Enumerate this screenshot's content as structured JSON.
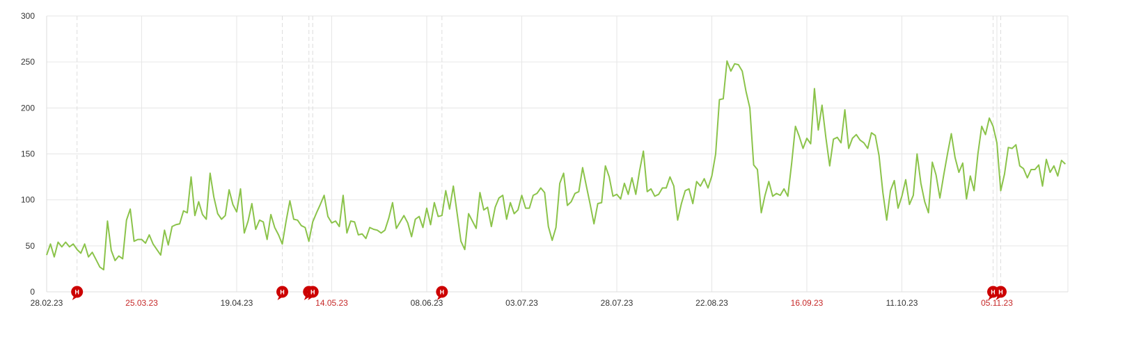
{
  "chart_data": {
    "type": "line",
    "title": "",
    "xlabel": "",
    "ylabel": "",
    "start_date": "2023-02-28",
    "x_tick_labels": [
      {
        "label": "28.02.23",
        "day": 0,
        "highlight": false
      },
      {
        "label": "25.03.23",
        "day": 25,
        "highlight": true
      },
      {
        "label": "19.04.23",
        "day": 50,
        "highlight": false
      },
      {
        "label": "14.05.23",
        "day": 75,
        "highlight": true
      },
      {
        "label": "08.06.23",
        "day": 100,
        "highlight": false
      },
      {
        "label": "03.07.23",
        "day": 125,
        "highlight": false
      },
      {
        "label": "28.07.23",
        "day": 150,
        "highlight": false
      },
      {
        "label": "22.08.23",
        "day": 175,
        "highlight": false
      },
      {
        "label": "16.09.23",
        "day": 200,
        "highlight": true
      },
      {
        "label": "11.10.23",
        "day": 225,
        "highlight": false
      },
      {
        "label": "05.11.23",
        "day": 250,
        "highlight": true
      }
    ],
    "y_ticks": [
      "0",
      "50",
      "100",
      "150",
      "200",
      "250",
      "300"
    ],
    "ylim": [
      0,
      300
    ],
    "grid": true,
    "legend": "none",
    "colors": {
      "line": "#8bc34a",
      "grid": "#e6e6e6",
      "highlight_label": "#c62828",
      "annotation": "#cc0000"
    },
    "series": [
      {
        "values": [
          40,
          52,
          38,
          54,
          49,
          54,
          49,
          52,
          46,
          42,
          52,
          38,
          43,
          35,
          27,
          24,
          77,
          45,
          34,
          39,
          36,
          78,
          90,
          55,
          57,
          57,
          53,
          62,
          52,
          46,
          40,
          67,
          51,
          71,
          73,
          74,
          88,
          86,
          125,
          83,
          98,
          84,
          79,
          129,
          103,
          85,
          79,
          83,
          111,
          95,
          87,
          112,
          64,
          77,
          96,
          68,
          78,
          76,
          57,
          84,
          70,
          62,
          52,
          77,
          99,
          79,
          78,
          72,
          70,
          55,
          76,
          86,
          95,
          105,
          82,
          75,
          77,
          71,
          105,
          64,
          77,
          76,
          62,
          63,
          58,
          70,
          68,
          67,
          64,
          67,
          80,
          97,
          69,
          76,
          83,
          75,
          60,
          79,
          82,
          70,
          91,
          73,
          97,
          82,
          83,
          110,
          90,
          115,
          85,
          55,
          46,
          85,
          77,
          69,
          108,
          89,
          92,
          71,
          92,
          102,
          105,
          79,
          97,
          85,
          89,
          105,
          91,
          91,
          105,
          107,
          113,
          108,
          71,
          56,
          70,
          118,
          129,
          94,
          98,
          107,
          109,
          135,
          115,
          95,
          74,
          96,
          97,
          137,
          125,
          104,
          106,
          101,
          118,
          106,
          124,
          106,
          132,
          153,
          109,
          112,
          104,
          106,
          113,
          113,
          125,
          115,
          78,
          96,
          110,
          112,
          96,
          120,
          115,
          123,
          113,
          126,
          150,
          209,
          210,
          251,
          240,
          248,
          247,
          240,
          218,
          200,
          138,
          133,
          86,
          105,
          120,
          104,
          107,
          105,
          112,
          104,
          140,
          180,
          169,
          156,
          167,
          161,
          221,
          176,
          203,
          168,
          137,
          166,
          168,
          162,
          198,
          156,
          167,
          171,
          165,
          162,
          156,
          173,
          170,
          148,
          108,
          78,
          110,
          121,
          91,
          104,
          122,
          95,
          105,
          150,
          118,
          98,
          86,
          141,
          127,
          102,
          127,
          150,
          172,
          146,
          130,
          140,
          101,
          126,
          110,
          150,
          180,
          171,
          189,
          180,
          162,
          110,
          128,
          157,
          156,
          160,
          137,
          134,
          124,
          133,
          133,
          138,
          115,
          144,
          130,
          137,
          126,
          143,
          139
        ]
      }
    ],
    "annotations": [
      {
        "day": 8,
        "label": "H"
      },
      {
        "day": 62,
        "label": "H"
      },
      {
        "day": 69,
        "label": "H"
      },
      {
        "day": 70,
        "label": "H"
      },
      {
        "day": 104,
        "label": "H"
      },
      {
        "day": 249,
        "label": "H"
      },
      {
        "day": 251,
        "label": "H"
      }
    ]
  }
}
